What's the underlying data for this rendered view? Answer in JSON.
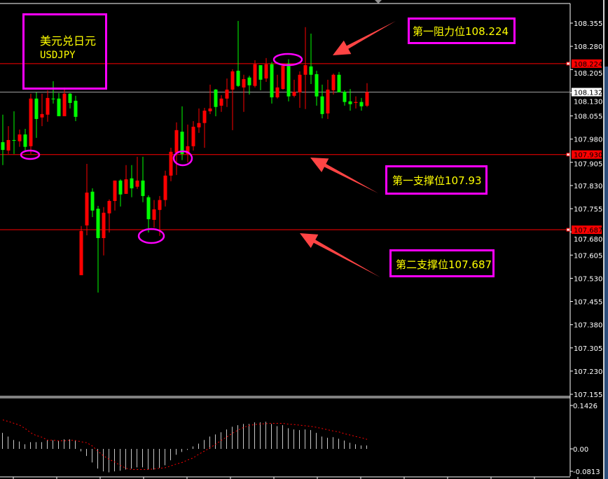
{
  "symbol": {
    "name_cn": "美元兑日元",
    "ticker": "USDJPY"
  },
  "annotations": {
    "resistance1": "第一阻力位108.224",
    "support1": "第一支撑位107.93",
    "support2": "第二支撑位107.687"
  },
  "colors": {
    "background": "#000000",
    "up_candle": "#ff0000",
    "down_candle": "#00ff00",
    "level_line": "#ff0000",
    "current_price_line": "#a0a0a0",
    "annotation_border": "#ff00ff",
    "annotation_text": "#ffff00",
    "arrow": "#ff4444",
    "axis_text": "#ffffff",
    "histogram": "#c8c8c8",
    "signal_line": "#ff0000"
  },
  "chart_data": [
    {
      "type": "candlestick",
      "title": "",
      "ylim": [
        107.155,
        108.38
      ],
      "y_ticks": [
        "108.355",
        "108.280",
        "108.205",
        "108.130",
        "108.055",
        "107.980",
        "107.905",
        "107.830",
        "107.755",
        "107.680",
        "107.605",
        "107.530",
        "107.455",
        "107.380",
        "107.305",
        "107.230",
        "107.155"
      ],
      "current_price": "108.132",
      "levels": [
        {
          "price": "108.224"
        },
        {
          "price": "107.930"
        },
        {
          "price": "107.687"
        }
      ],
      "ohlc": [
        [
          107.97,
          108.059,
          107.896,
          107.945
        ],
        [
          107.943,
          108.022,
          107.932,
          107.977
        ],
        [
          107.977,
          108.07,
          107.932,
          107.975
        ],
        [
          107.973,
          108.011,
          107.955,
          107.995
        ],
        [
          107.995,
          108.013,
          107.939,
          107.955
        ],
        [
          107.957,
          108.127,
          107.932,
          108.111
        ],
        [
          108.111,
          108.131,
          107.984,
          108.045
        ],
        [
          108.05,
          108.127,
          108.022,
          108.061
        ],
        [
          108.059,
          108.138,
          108.036,
          108.113
        ],
        [
          108.111,
          108.167,
          108.095,
          108.11
        ],
        [
          108.111,
          108.129,
          108.054,
          108.054
        ],
        [
          108.054,
          108.147,
          108.054,
          108.127
        ],
        [
          108.127,
          108.129,
          108.079,
          108.097
        ],
        [
          108.104,
          108.12,
          108.038,
          108.052
        ],
        [
          107.54,
          107.699,
          107.54,
          107.683
        ],
        [
          107.701,
          107.9,
          107.669,
          107.807
        ],
        [
          107.81,
          107.821,
          107.728,
          107.749
        ],
        [
          107.755,
          107.764,
          107.484,
          107.66
        ],
        [
          107.66,
          107.76,
          107.604,
          107.742
        ],
        [
          107.74,
          107.785,
          107.678,
          107.78
        ],
        [
          107.78,
          107.846,
          107.749,
          107.846
        ],
        [
          107.846,
          107.85,
          107.762,
          107.801
        ],
        [
          107.803,
          107.896,
          107.803,
          107.85
        ],
        [
          107.853,
          107.896,
          107.792,
          107.821
        ],
        [
          107.826,
          107.923,
          107.819,
          107.846
        ],
        [
          107.846,
          107.923,
          107.776,
          107.796
        ],
        [
          107.792,
          107.798,
          107.678,
          107.721
        ],
        [
          107.719,
          107.783,
          107.694,
          107.753
        ],
        [
          107.751,
          107.796,
          107.667,
          107.783
        ],
        [
          107.783,
          107.878,
          107.762,
          107.862
        ],
        [
          107.862,
          107.952,
          107.844,
          107.939
        ],
        [
          107.936,
          108.034,
          107.864,
          108.009
        ],
        [
          108.004,
          108.086,
          107.912,
          107.932
        ],
        [
          107.932,
          108.027,
          107.905,
          107.957
        ],
        [
          107.957,
          108.038,
          107.943,
          108.02
        ],
        [
          108.018,
          108.079,
          108.0,
          108.032
        ],
        [
          108.032,
          108.081,
          107.952,
          108.072
        ],
        [
          108.07,
          108.156,
          108.061,
          108.079
        ],
        [
          108.14,
          108.142,
          108.054,
          108.084
        ],
        [
          108.088,
          108.122,
          108.068,
          108.111
        ],
        [
          108.111,
          108.176,
          108.084,
          108.14
        ],
        [
          108.14,
          108.206,
          108.009,
          108.199
        ],
        [
          108.201,
          108.362,
          108.149,
          108.152
        ],
        [
          108.147,
          108.188,
          108.068,
          108.174
        ],
        [
          108.179,
          108.185,
          108.124,
          108.154
        ],
        [
          108.152,
          108.235,
          108.147,
          108.222
        ],
        [
          108.219,
          108.219,
          108.138,
          108.172
        ],
        [
          108.176,
          108.242,
          108.165,
          108.222
        ],
        [
          108.222,
          108.229,
          108.095,
          108.115
        ],
        [
          108.115,
          108.188,
          108.111,
          108.147
        ],
        [
          108.142,
          108.219,
          108.14,
          108.217
        ],
        [
          108.224,
          108.238,
          108.102,
          108.118
        ],
        [
          108.12,
          108.172,
          108.115,
          108.133
        ],
        [
          108.131,
          108.199,
          108.081,
          108.188
        ],
        [
          108.188,
          108.342,
          108.077,
          108.219
        ],
        [
          108.215,
          108.321,
          108.158,
          108.188
        ],
        [
          108.19,
          108.201,
          108.088,
          108.118
        ],
        [
          108.118,
          108.156,
          108.047,
          108.061
        ],
        [
          108.063,
          108.172,
          108.045,
          108.14
        ],
        [
          108.138,
          108.192,
          108.124,
          108.188
        ],
        [
          108.188,
          108.197,
          108.131,
          108.131
        ],
        [
          108.133,
          108.138,
          108.088,
          108.1
        ],
        [
          108.102,
          108.142,
          108.072,
          108.093
        ],
        [
          108.097,
          108.118,
          108.079,
          108.1
        ],
        [
          108.1,
          108.113,
          108.072,
          108.086
        ],
        [
          108.088,
          108.161,
          108.084,
          108.132
        ]
      ]
    },
    {
      "type": "bar",
      "title": "",
      "ylim": [
        -0.0813,
        0.1426
      ],
      "y_ticks": [
        "0.1426",
        "0.00",
        "-0.0813"
      ],
      "histogram": [
        0.052,
        0.04,
        0.029,
        0.024,
        0.015,
        0.022,
        0.022,
        0.022,
        0.028,
        0.028,
        0.027,
        0.031,
        0.031,
        0.027,
        -0.008,
        -0.023,
        -0.044,
        -0.064,
        -0.073,
        -0.076,
        -0.073,
        -0.071,
        -0.067,
        -0.064,
        -0.06,
        -0.06,
        -0.067,
        -0.067,
        -0.062,
        -0.053,
        -0.037,
        -0.019,
        -0.01,
        -0.003,
        0.008,
        0.017,
        0.029,
        0.04,
        0.047,
        0.054,
        0.063,
        0.072,
        0.077,
        0.081,
        0.081,
        0.086,
        0.086,
        0.088,
        0.081,
        0.074,
        0.077,
        0.067,
        0.063,
        0.061,
        0.063,
        0.061,
        0.052,
        0.04,
        0.036,
        0.038,
        0.033,
        0.027,
        0.02,
        0.015,
        0.011,
        0.011
      ],
      "signal": [
        0.094,
        0.089,
        0.083,
        0.077,
        0.066,
        0.052,
        0.043,
        0.038,
        0.028,
        0.028,
        0.026,
        0.026,
        0.028,
        0.027,
        0.023,
        0.02,
        0.009,
        -0.008,
        -0.023,
        -0.034,
        -0.043,
        -0.054,
        -0.063,
        -0.067,
        -0.067,
        -0.067,
        -0.067,
        -0.065,
        -0.063,
        -0.061,
        -0.055,
        -0.049,
        -0.044,
        -0.036,
        -0.029,
        -0.017,
        -0.007,
        0.004,
        0.015,
        0.028,
        0.039,
        0.051,
        0.061,
        0.07,
        0.076,
        0.079,
        0.081,
        0.082,
        0.083,
        0.083,
        0.083,
        0.08,
        0.079,
        0.077,
        0.075,
        0.073,
        0.07,
        0.066,
        0.062,
        0.058,
        0.055,
        0.049,
        0.045,
        0.04,
        0.036,
        0.031
      ]
    }
  ]
}
